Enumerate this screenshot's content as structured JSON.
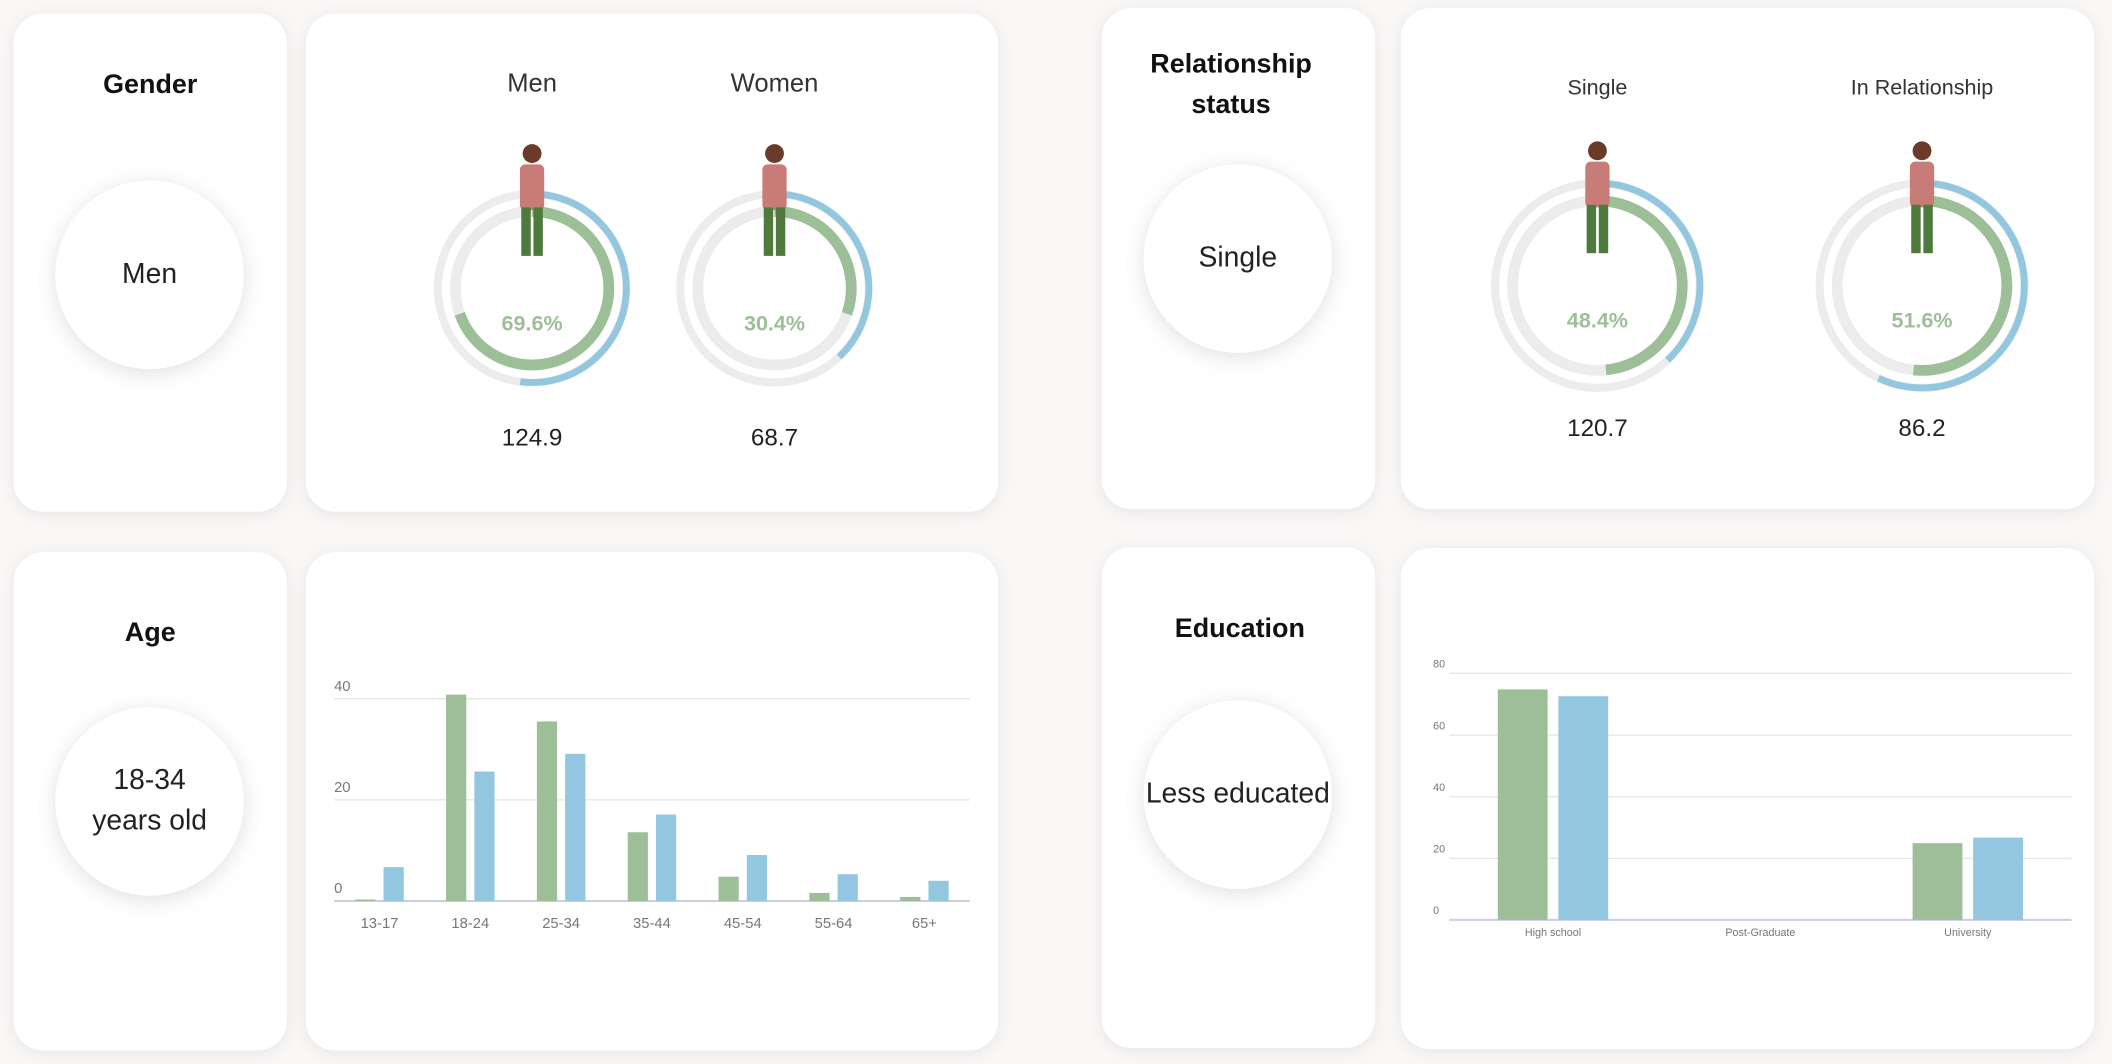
{
  "panels": [
    {
      "title": "Gender",
      "selected": "Men"
    },
    {
      "title": "Relationship status",
      "selected": "Single"
    },
    {
      "title": "Age",
      "selected": "18-34 years old"
    },
    {
      "title": "Education",
      "selected": "Less educated"
    }
  ],
  "chart_data": [
    {
      "type": "gauge",
      "categories": [
        "Men",
        "Women"
      ],
      "series": [
        {
          "color": "#9dbf98",
          "values": [
            69.6,
            30.4
          ],
          "value_labels": [
            "69.6%",
            "30.4%"
          ]
        },
        {
          "color": "#93c6df",
          "values": [
            52,
            38
          ]
        }
      ],
      "totals": [
        124.9,
        68.7
      ]
    },
    {
      "type": "gauge",
      "categories": [
        "Single",
        "In Relationship"
      ],
      "series": [
        {
          "color": "#9dbf98",
          "values": [
            48.4,
            51.6
          ],
          "value_labels": [
            "48.4%",
            "51.6%"
          ]
        },
        {
          "color": "#93c6df",
          "values": [
            38,
            57
          ]
        }
      ],
      "totals": [
        120.7,
        86.2
      ]
    },
    {
      "type": "bar",
      "categories": [
        "13-17",
        "18-24",
        "25-34",
        "35-44",
        "45-54",
        "55-64",
        "65+"
      ],
      "series": [
        {
          "color": "#9dbf98",
          "values": [
            0.3,
            40.8,
            35.5,
            13.6,
            4.8,
            1.6,
            0.8
          ]
        },
        {
          "color": "#93c6df",
          "values": [
            6.7,
            25.6,
            29.1,
            17.1,
            9.1,
            5.3,
            4.0
          ]
        }
      ],
      "ylim": [
        0,
        45
      ],
      "yticks": [
        0,
        20,
        40
      ],
      "grid": true
    },
    {
      "type": "bar",
      "categories": [
        "High school",
        "Post-Graduate",
        "University"
      ],
      "series": [
        {
          "color": "#9dbf98",
          "values": [
            74.8,
            0,
            24.9
          ]
        },
        {
          "color": "#93c6df",
          "values": [
            72.6,
            0,
            26.7
          ]
        }
      ],
      "ylim": [
        0,
        80
      ],
      "yticks": [
        0,
        20,
        40,
        60,
        80
      ],
      "grid": true
    }
  ]
}
